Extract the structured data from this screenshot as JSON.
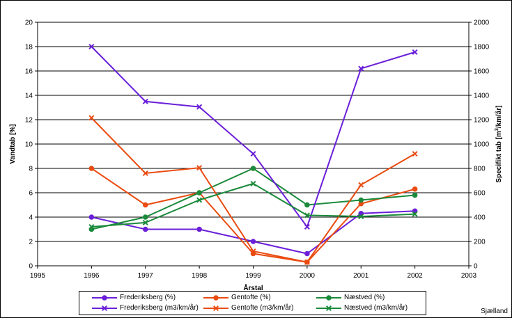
{
  "chart_data": {
    "type": "line",
    "xlabel": "Årstal",
    "ylabel_left": "Vandtab [%]",
    "ylabel_right": "Specifikt tab [m3/km/år]",
    "xlim": [
      1995,
      2003
    ],
    "xticks": [
      1995,
      1996,
      1997,
      1998,
      1999,
      2000,
      2001,
      2002,
      2003
    ],
    "ylim_left": [
      0,
      20
    ],
    "yticks_left": [
      0,
      2,
      4,
      6,
      8,
      10,
      12,
      14,
      16,
      18,
      20
    ],
    "ylim_right": [
      0,
      2000
    ],
    "yticks_right": [
      0,
      200,
      400,
      600,
      800,
      1000,
      1200,
      1400,
      1600,
      1800,
      2000
    ],
    "grid": "horizontal",
    "legend_position": "bottom",
    "series": [
      {
        "name": "Frederiksberg (%)",
        "axis": "left",
        "marker": "circle",
        "color": "#6a1fd9",
        "points": [
          [
            1996,
            4.0
          ],
          [
            1997,
            3.0
          ],
          [
            1998,
            3.0
          ],
          [
            1999,
            2.0
          ],
          [
            2000,
            1.0
          ],
          [
            2001,
            4.3
          ],
          [
            2002,
            4.5
          ]
        ]
      },
      {
        "name": "Gentofte (%)",
        "axis": "left",
        "marker": "circle",
        "color": "#ea4b10",
        "points": [
          [
            1996,
            8.0
          ],
          [
            1997,
            5.0
          ],
          [
            1998,
            6.0
          ],
          [
            1999,
            1.0
          ],
          [
            2000,
            0.3
          ],
          [
            2001,
            5.1
          ],
          [
            2002,
            6.3
          ]
        ]
      },
      {
        "name": "Næstved (%)",
        "axis": "left",
        "marker": "circle",
        "color": "#1a8a3a",
        "points": [
          [
            1996,
            3.0
          ],
          [
            1997,
            4.0
          ],
          [
            1998,
            6.0
          ],
          [
            1999,
            8.0
          ],
          [
            2000,
            5.0
          ],
          [
            2001,
            5.4
          ],
          [
            2002,
            5.8
          ]
        ]
      },
      {
        "name": "Frederiksberg (m3/km/år)",
        "axis": "right",
        "marker": "cross",
        "color": "#6a1fd9",
        "points": [
          [
            1996,
            1800
          ],
          [
            1997,
            1350
          ],
          [
            1998,
            1305
          ],
          [
            1999,
            920
          ],
          [
            2000,
            320
          ],
          [
            2001,
            1620
          ],
          [
            2002,
            1755
          ]
        ]
      },
      {
        "name": "Gentofte (m3/km/år)",
        "axis": "right",
        "marker": "cross",
        "color": "#ea4b10",
        "points": [
          [
            1996,
            1215
          ],
          [
            1997,
            760
          ],
          [
            1998,
            805
          ],
          [
            1999,
            120
          ],
          [
            2000,
            30
          ],
          [
            2001,
            665
          ],
          [
            2002,
            920
          ]
        ]
      },
      {
        "name": "Næstved (m3/km/år)",
        "axis": "right",
        "marker": "cross",
        "color": "#1a8a3a",
        "points": [
          [
            1996,
            320
          ],
          [
            1997,
            355
          ],
          [
            1998,
            540
          ],
          [
            1999,
            675
          ],
          [
            2000,
            415
          ],
          [
            2001,
            405
          ],
          [
            2002,
            425
          ]
        ]
      }
    ]
  },
  "footnote": "Sjælland"
}
